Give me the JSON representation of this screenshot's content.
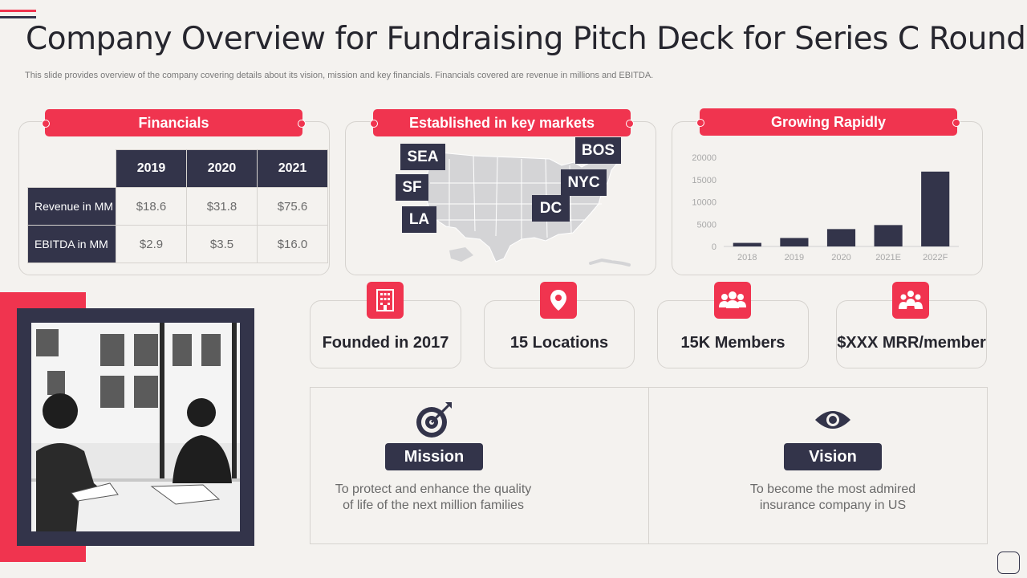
{
  "header": {
    "title": "Company Overview for Fundraising Pitch Deck for Series C Round",
    "subtitle": "This slide provides overview of the company covering details about its vision, mission and key financials. Financials covered are revenue in millions and EBITDA."
  },
  "financials": {
    "heading": "Financials",
    "years": [
      "2019",
      "2020",
      "2021"
    ],
    "rows": [
      {
        "label": "Revenue in MM",
        "values": [
          "$18.6",
          "$31.8",
          "$75.6"
        ]
      },
      {
        "label": "EBITDA in MM",
        "values": [
          "$2.9",
          "$3.5",
          "$16.0"
        ]
      }
    ]
  },
  "markets": {
    "heading": "Established in key markets",
    "cities": [
      "SEA",
      "SF",
      "LA",
      "BOS",
      "NYC",
      "DC"
    ]
  },
  "growth": {
    "heading": "Growing Rapidly"
  },
  "stats": [
    {
      "label": "Founded in 2017",
      "icon": "building-icon"
    },
    {
      "label": "15 Locations",
      "icon": "location-pin-icon"
    },
    {
      "label": "15K Members",
      "icon": "group-icon"
    },
    {
      "label": "$XXX MRR/member",
      "icon": "team-icon"
    }
  ],
  "mission": {
    "label": "Mission",
    "text": "To protect and enhance the quality\nof life of the next million families"
  },
  "vision": {
    "label": "Vision",
    "text": "To become the most admired\ninsurance company in US"
  },
  "colors": {
    "accent": "#f0344f",
    "dark": "#33344a",
    "background": "#f4f2ef"
  },
  "chart_data": {
    "type": "bar",
    "categories": [
      "2018",
      "2019",
      "2020",
      "2021E",
      "2022F"
    ],
    "values": [
      800,
      1900,
      3900,
      4800,
      16800
    ],
    "ylim": [
      0,
      20000
    ],
    "yticks": [
      "0",
      "5000",
      "10000",
      "15000",
      "20000"
    ],
    "grid": false,
    "color": "#33344a"
  }
}
